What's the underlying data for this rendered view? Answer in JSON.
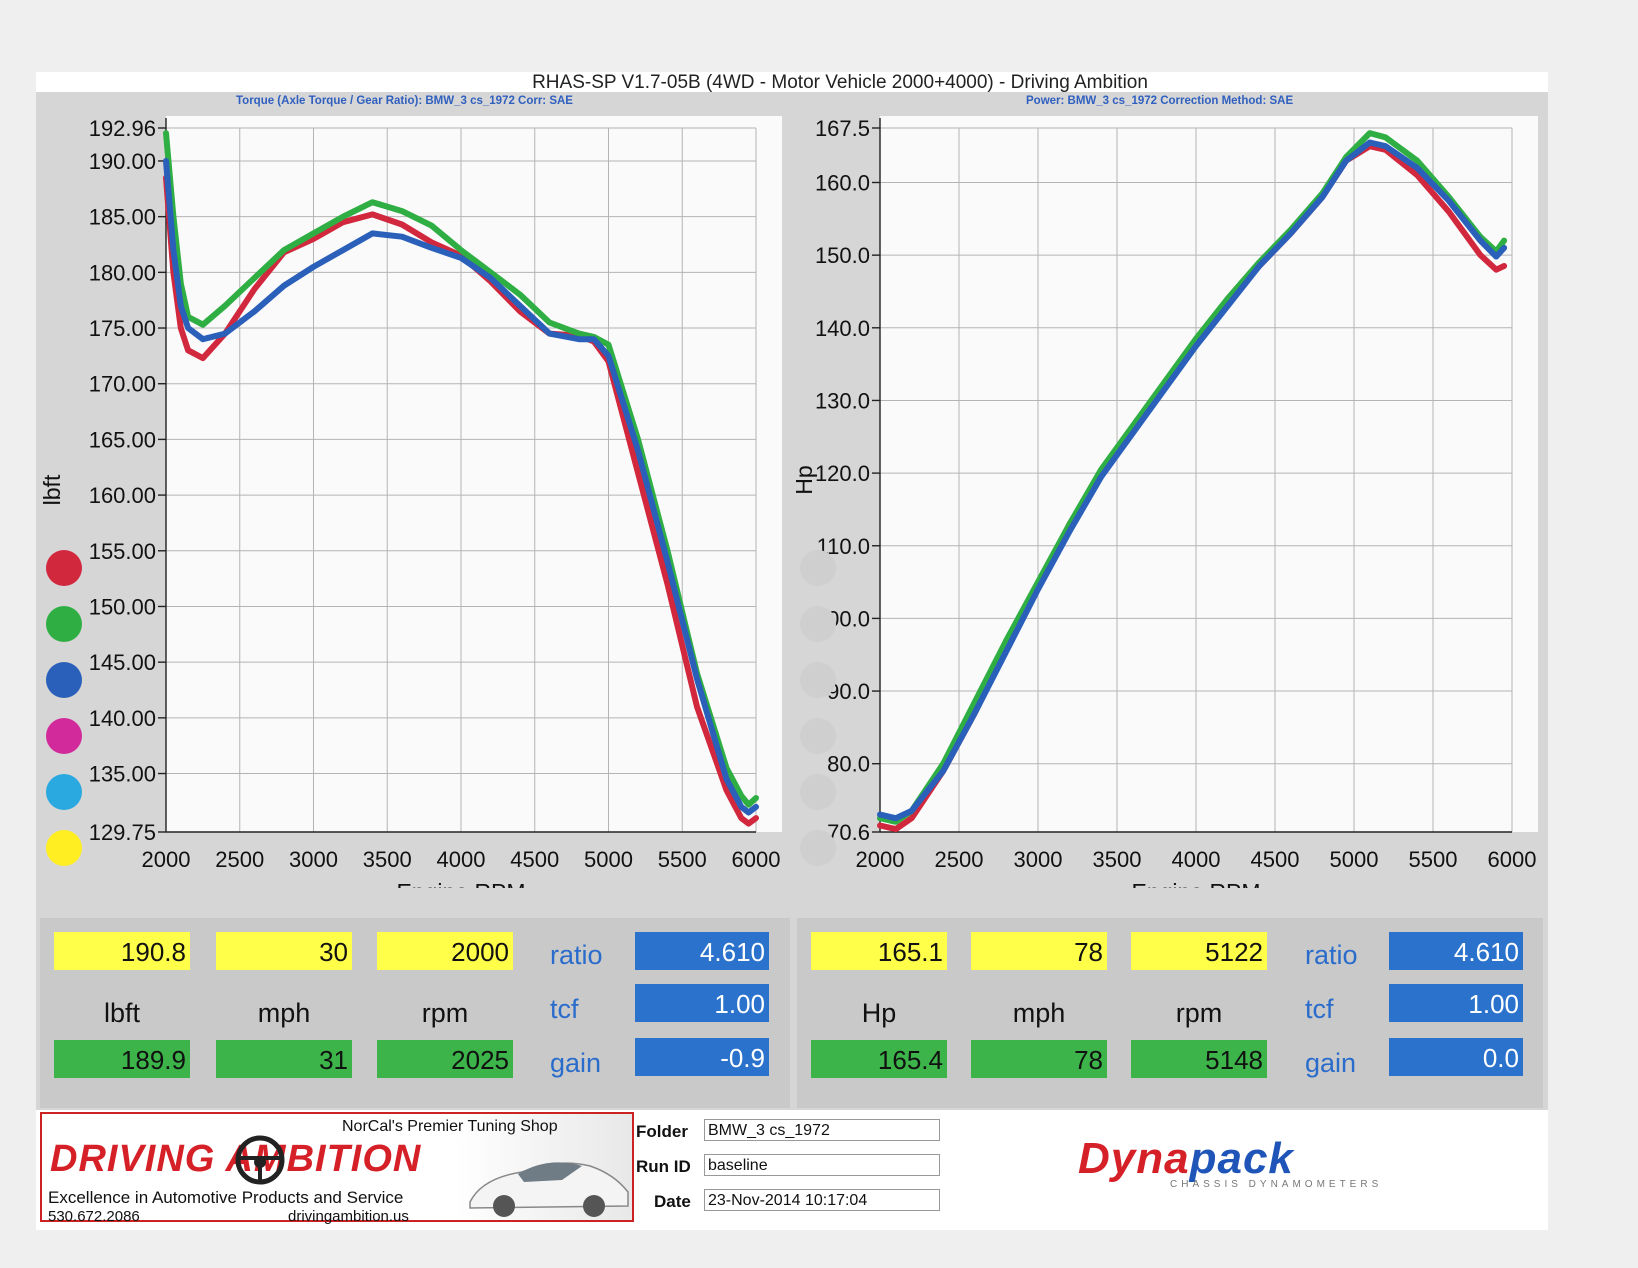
{
  "header": {
    "title": "RHAS-SP V1.7-05B   (4WD - Motor Vehicle 2000+4000) - Driving Ambition",
    "left_subtitle": "Torque (Axle Torque / Gear Ratio): BMW_3 cs_1972     Corr: SAE",
    "right_subtitle": "Power: BMW_3 cs_1972     Correction Method: SAE"
  },
  "run_dots": {
    "left": [
      "#d2283e",
      "#2fae43",
      "#2a5fba",
      "#d22a9a",
      "#2aa8e0",
      "#ffee22"
    ],
    "right": [
      "#cfcfcf",
      "#cfcfcf",
      "#cfcfcf",
      "#cfcfcf",
      "#cfcfcf",
      "#cfcfcf"
    ]
  },
  "chart_data": [
    {
      "type": "line",
      "title": "",
      "xlabel": "Engine RPM",
      "ylabel": "lbft",
      "xlim": [
        2000,
        6000
      ],
      "ylim": [
        129.75,
        192.96
      ],
      "xticks": [
        2000,
        2500,
        3000,
        3500,
        4000,
        4500,
        5000,
        5500,
        6000
      ],
      "yticks": [
        "192.96",
        "190.00",
        "185.00",
        "180.00",
        "175.00",
        "170.00",
        "165.00",
        "160.00",
        "155.00",
        "150.00",
        "145.00",
        "140.00",
        "135.00",
        "129.75"
      ],
      "grid": true,
      "series": [
        {
          "color": "#d2283e",
          "points": [
            [
              2000,
              188.5
            ],
            [
              2050,
              180
            ],
            [
              2100,
              175
            ],
            [
              2150,
              173
            ],
            [
              2250,
              172.3
            ],
            [
              2400,
              174.5
            ],
            [
              2600,
              178.5
            ],
            [
              2800,
              181.8
            ],
            [
              3000,
              183
            ],
            [
              3200,
              184.5
            ],
            [
              3400,
              185.2
            ],
            [
              3600,
              184.3
            ],
            [
              3800,
              182.7
            ],
            [
              4000,
              181.5
            ],
            [
              4200,
              179.2
            ],
            [
              4400,
              176.5
            ],
            [
              4600,
              174.5
            ],
            [
              4800,
              174.3
            ],
            [
              4900,
              173.8
            ],
            [
              5000,
              172
            ],
            [
              5200,
              162
            ],
            [
              5400,
              152
            ],
            [
              5600,
              141
            ],
            [
              5800,
              133.5
            ],
            [
              5900,
              131
            ],
            [
              5950,
              130.5
            ],
            [
              6000,
              131
            ]
          ]
        },
        {
          "color": "#2fae43",
          "points": [
            [
              2000,
              192.5
            ],
            [
              2050,
              185
            ],
            [
              2100,
              179
            ],
            [
              2150,
              176
            ],
            [
              2250,
              175.3
            ],
            [
              2400,
              177
            ],
            [
              2600,
              179.5
            ],
            [
              2800,
              182
            ],
            [
              3000,
              183.5
            ],
            [
              3200,
              185
            ],
            [
              3400,
              186.3
            ],
            [
              3600,
              185.5
            ],
            [
              3800,
              184.2
            ],
            [
              4000,
              182
            ],
            [
              4200,
              180
            ],
            [
              4400,
              178
            ],
            [
              4600,
              175.5
            ],
            [
              4800,
              174.5
            ],
            [
              4900,
              174.2
            ],
            [
              5000,
              173.5
            ],
            [
              5200,
              165
            ],
            [
              5400,
              155
            ],
            [
              5600,
              144
            ],
            [
              5800,
              135.5
            ],
            [
              5900,
              133
            ],
            [
              5950,
              132.2
            ],
            [
              6000,
              132.8
            ]
          ]
        },
        {
          "color": "#2a5fba",
          "points": [
            [
              2000,
              190
            ],
            [
              2050,
              182
            ],
            [
              2100,
              177
            ],
            [
              2150,
              175
            ],
            [
              2250,
              174
            ],
            [
              2400,
              174.5
            ],
            [
              2600,
              176.5
            ],
            [
              2800,
              178.8
            ],
            [
              3000,
              180.5
            ],
            [
              3200,
              182
            ],
            [
              3400,
              183.5
            ],
            [
              3600,
              183.2
            ],
            [
              3800,
              182.2
            ],
            [
              4000,
              181.3
            ],
            [
              4200,
              179.5
            ],
            [
              4400,
              177
            ],
            [
              4600,
              174.5
            ],
            [
              4800,
              174
            ],
            [
              4900,
              174
            ],
            [
              5000,
              172.5
            ],
            [
              5200,
              164
            ],
            [
              5400,
              154
            ],
            [
              5600,
              143.5
            ],
            [
              5800,
              134.5
            ],
            [
              5900,
              132
            ],
            [
              5950,
              131.5
            ],
            [
              6000,
              132
            ]
          ]
        }
      ]
    },
    {
      "type": "line",
      "title": "",
      "xlabel": "Engine RPM",
      "ylabel": "Hp",
      "xlim": [
        2000,
        6000
      ],
      "ylim": [
        70.6,
        167.5
      ],
      "xticks": [
        2000,
        2500,
        3000,
        3500,
        4000,
        4500,
        5000,
        5500,
        6000
      ],
      "yticks": [
        "167.5",
        "160.0",
        "150.0",
        "140.0",
        "130.0",
        "120.0",
        "110.0",
        "100.0",
        "90.0",
        "80.0",
        "70.6"
      ],
      "grid": true,
      "series": [
        {
          "color": "#d2283e",
          "points": [
            [
              2000,
              71.5
            ],
            [
              2100,
              71
            ],
            [
              2200,
              72.5
            ],
            [
              2400,
              79
            ],
            [
              2600,
              87
            ],
            [
              2800,
              96
            ],
            [
              3000,
              104.5
            ],
            [
              3200,
              113
            ],
            [
              3400,
              120
            ],
            [
              3600,
              126
            ],
            [
              3800,
              132
            ],
            [
              4000,
              138
            ],
            [
              4200,
              143.5
            ],
            [
              4400,
              148.5
            ],
            [
              4600,
              153
            ],
            [
              4800,
              158
            ],
            [
              4950,
              163
            ],
            [
              5100,
              165
            ],
            [
              5200,
              164.5
            ],
            [
              5400,
              161
            ],
            [
              5600,
              156
            ],
            [
              5800,
              150
            ],
            [
              5900,
              148
            ],
            [
              5950,
              148.5
            ]
          ]
        },
        {
          "color": "#2fae43",
          "points": [
            [
              2000,
              72.5
            ],
            [
              2100,
              72
            ],
            [
              2200,
              73.5
            ],
            [
              2400,
              80
            ],
            [
              2600,
              88.5
            ],
            [
              2800,
              97
            ],
            [
              3000,
              105
            ],
            [
              3200,
              113
            ],
            [
              3400,
              120.5
            ],
            [
              3600,
              126.5
            ],
            [
              3800,
              132.5
            ],
            [
              4000,
              138.5
            ],
            [
              4200,
              144
            ],
            [
              4400,
              149
            ],
            [
              4600,
              153.5
            ],
            [
              4800,
              158.5
            ],
            [
              4950,
              163.5
            ],
            [
              5100,
              166.8
            ],
            [
              5200,
              166.2
            ],
            [
              5400,
              163
            ],
            [
              5600,
              158
            ],
            [
              5800,
              152.5
            ],
            [
              5900,
              150.5
            ],
            [
              5950,
              152
            ]
          ]
        },
        {
          "color": "#2a5fba",
          "points": [
            [
              2000,
              73
            ],
            [
              2100,
              72.5
            ],
            [
              2200,
              73.5
            ],
            [
              2400,
              79
            ],
            [
              2600,
              87
            ],
            [
              2800,
              95.5
            ],
            [
              3000,
              104
            ],
            [
              3200,
              112
            ],
            [
              3400,
              119.5
            ],
            [
              3600,
              125.5
            ],
            [
              3800,
              131.5
            ],
            [
              4000,
              137.5
            ],
            [
              4200,
              143
            ],
            [
              4400,
              148.5
            ],
            [
              4600,
              153
            ],
            [
              4800,
              158
            ],
            [
              4950,
              163
            ],
            [
              5100,
              165.5
            ],
            [
              5200,
              165
            ],
            [
              5400,
              162
            ],
            [
              5600,
              157.5
            ],
            [
              5800,
              152
            ],
            [
              5900,
              149.8
            ],
            [
              5950,
              151
            ]
          ]
        }
      ]
    }
  ],
  "readout_left": {
    "row1": [
      "190.8",
      "30",
      "2000"
    ],
    "units": [
      "lbft",
      "mph",
      "rpm"
    ],
    "row2": [
      "189.9",
      "31",
      "2025"
    ],
    "keys": [
      "ratio",
      "tcf",
      "gain"
    ],
    "key_values": [
      "4.610",
      "1.00",
      "-0.9"
    ]
  },
  "readout_right": {
    "row1": [
      "165.1",
      "78",
      "5122"
    ],
    "units": [
      "Hp",
      "mph",
      "rpm"
    ],
    "row2": [
      "165.4",
      "78",
      "5148"
    ],
    "keys": [
      "ratio",
      "tcf",
      "gain"
    ],
    "key_values": [
      "4.610",
      "1.00",
      "0.0"
    ]
  },
  "footer": {
    "shop_tagline": "NorCal's Premier Tuning Shop",
    "shop_name": "DRIVING AMBITION",
    "shop_slogan": "Excellence in Automotive Products and Service",
    "shop_phone": "530.672.2086",
    "shop_url": "drivingambition.us",
    "folder_label": "Folder",
    "folder_value": "BMW_3 cs_1972",
    "runid_label": "Run ID",
    "runid_value": "baseline",
    "date_label": "Date",
    "date_value": "23-Nov-2014  10:17:04",
    "brand_part1": "Dyna",
    "brand_part2": "pack",
    "brand_sub": "CHASSIS DYNAMOMETERS"
  }
}
